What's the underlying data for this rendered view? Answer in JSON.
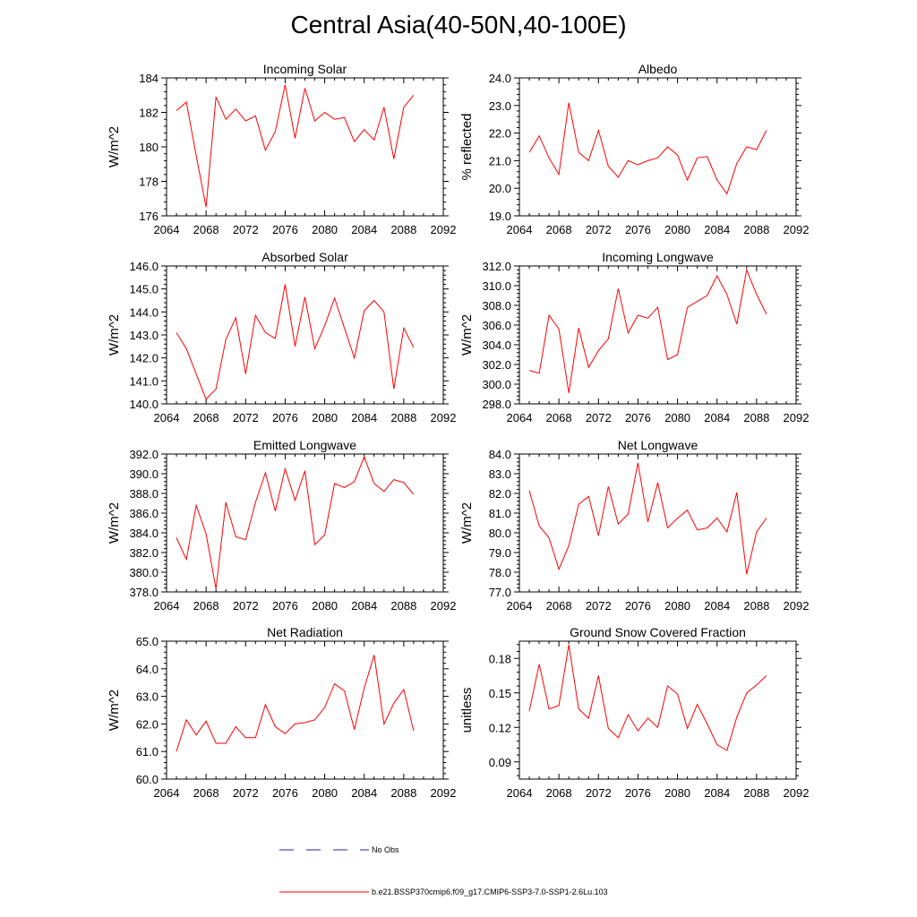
{
  "title": "Central Asia(40-50N,40-100E)",
  "colors": {
    "series": "#ff0000",
    "obs": "#2222aa",
    "axis": "#000000"
  },
  "legend": {
    "obs_label": "No Obs",
    "model_label": "b.e21.BSSP370cmip6.f09_g17.CMIP6-SSP3-7.0-SSP1-2.6Lu.103"
  },
  "chart_data": [
    {
      "type": "line",
      "title": "Incoming Solar",
      "ylabel": "W/m^2",
      "xlim": [
        2064,
        2092
      ],
      "ylim": [
        176,
        184
      ],
      "yticks": [
        176,
        178,
        180,
        182,
        184
      ],
      "ytick_labels": [
        "176",
        "178",
        "180",
        "182",
        "184"
      ],
      "xticks": [
        2064,
        2068,
        2072,
        2076,
        2080,
        2084,
        2088,
        2092
      ],
      "xtick_labels": [
        "2064",
        "2068",
        "2072",
        "2076",
        "2080",
        "2084",
        "2088",
        "2092"
      ],
      "series": [
        {
          "name": "b.e21.BSSP370cmip6.f09_g17.CMIP6-SSP3-7.0-SSP1-2.6Lu.103",
          "x": [
            2065,
            2066,
            2067,
            2068,
            2069,
            2070,
            2071,
            2072,
            2073,
            2074,
            2075,
            2076,
            2077,
            2078,
            2079,
            2080,
            2081,
            2082,
            2083,
            2084,
            2085,
            2086,
            2087,
            2088,
            2089
          ],
          "y": [
            182.1,
            182.6,
            179.5,
            176.5,
            182.9,
            181.6,
            182.2,
            181.5,
            181.8,
            179.8,
            180.9,
            183.6,
            180.5,
            183.4,
            181.5,
            182.0,
            181.6,
            181.7,
            180.3,
            181.0,
            180.4,
            182.3,
            179.3,
            182.3,
            183.0
          ]
        }
      ]
    },
    {
      "type": "line",
      "title": "Albedo",
      "ylabel": "% reflected",
      "xlim": [
        2064,
        2092
      ],
      "ylim": [
        19.0,
        24.0
      ],
      "yticks": [
        19,
        20,
        21,
        22,
        23,
        24
      ],
      "ytick_labels": [
        "19.0",
        "20.0",
        "21.0",
        "22.0",
        "23.0",
        "24.0"
      ],
      "xticks": [
        2064,
        2068,
        2072,
        2076,
        2080,
        2084,
        2088,
        2092
      ],
      "xtick_labels": [
        "2064",
        "2068",
        "2072",
        "2076",
        "2080",
        "2084",
        "2088",
        "2092"
      ],
      "series": [
        {
          "name": "b.e21.BSSP370cmip6.f09_g17.CMIP6-SSP3-7.0-SSP1-2.6Lu.103",
          "x": [
            2065,
            2066,
            2067,
            2068,
            2069,
            2070,
            2071,
            2072,
            2073,
            2074,
            2075,
            2076,
            2077,
            2078,
            2079,
            2080,
            2081,
            2082,
            2083,
            2084,
            2085,
            2086,
            2087,
            2088,
            2089
          ],
          "y": [
            21.3,
            21.9,
            21.1,
            20.5,
            23.1,
            21.3,
            21.0,
            22.1,
            20.8,
            20.4,
            21.0,
            20.85,
            21.0,
            21.1,
            21.5,
            21.2,
            20.3,
            21.1,
            21.15,
            20.3,
            19.8,
            20.9,
            21.5,
            21.4,
            22.1
          ]
        }
      ]
    },
    {
      "type": "line",
      "title": "Absorbed Solar",
      "ylabel": "W/m^2",
      "xlim": [
        2064,
        2092
      ],
      "ylim": [
        140.0,
        146.0
      ],
      "yticks": [
        140,
        141,
        142,
        143,
        144,
        145,
        146
      ],
      "ytick_labels": [
        "140.0",
        "141.0",
        "142.0",
        "143.0",
        "144.0",
        "145.0",
        "146.0"
      ],
      "xticks": [
        2064,
        2068,
        2072,
        2076,
        2080,
        2084,
        2088,
        2092
      ],
      "xtick_labels": [
        "2064",
        "2068",
        "2072",
        "2076",
        "2080",
        "2084",
        "2088",
        "2092"
      ],
      "series": [
        {
          "name": "b.e21.BSSP370cmip6.f09_g17.CMIP6-SSP3-7.0-SSP1-2.6Lu.103",
          "x": [
            2065,
            2066,
            2067,
            2068,
            2069,
            2070,
            2071,
            2072,
            2073,
            2074,
            2075,
            2076,
            2077,
            2078,
            2079,
            2080,
            2081,
            2082,
            2083,
            2084,
            2085,
            2086,
            2087,
            2088,
            2089
          ],
          "y": [
            143.1,
            142.4,
            141.3,
            140.2,
            140.65,
            142.8,
            143.75,
            141.3,
            143.85,
            143.1,
            142.85,
            145.2,
            142.5,
            144.65,
            142.4,
            143.4,
            144.6,
            143.3,
            142.0,
            144.05,
            144.5,
            144.0,
            140.65,
            143.3,
            142.45
          ]
        }
      ]
    },
    {
      "type": "line",
      "title": "Incoming Longwave",
      "ylabel": "W/m^2",
      "xlim": [
        2064,
        2092
      ],
      "ylim": [
        298.0,
        312.0
      ],
      "yticks": [
        298,
        300,
        302,
        304,
        306,
        308,
        310,
        312
      ],
      "ytick_labels": [
        "298.0",
        "300.0",
        "302.0",
        "304.0",
        "306.0",
        "308.0",
        "310.0",
        "312.0"
      ],
      "xticks": [
        2064,
        2068,
        2072,
        2076,
        2080,
        2084,
        2088,
        2092
      ],
      "xtick_labels": [
        "2064",
        "2068",
        "2072",
        "2076",
        "2080",
        "2084",
        "2088",
        "2092"
      ],
      "series": [
        {
          "name": "b.e21.BSSP370cmip6.f09_g17.CMIP6-SSP3-7.0-SSP1-2.6Lu.103",
          "x": [
            2065,
            2066,
            2067,
            2068,
            2069,
            2070,
            2071,
            2072,
            2073,
            2074,
            2075,
            2076,
            2077,
            2078,
            2079,
            2080,
            2081,
            2082,
            2083,
            2084,
            2085,
            2086,
            2087,
            2088,
            2089
          ],
          "y": [
            301.4,
            301.1,
            307.0,
            305.6,
            299.1,
            305.7,
            301.7,
            303.4,
            304.6,
            309.7,
            305.2,
            307.0,
            306.7,
            307.8,
            302.5,
            303.0,
            307.8,
            308.4,
            309.0,
            311.0,
            309.1,
            306.1,
            311.6,
            309.1,
            307.1
          ]
        }
      ]
    },
    {
      "type": "line",
      "title": "Emitted Longwave",
      "ylabel": "W/m^2",
      "xlim": [
        2064,
        2092
      ],
      "ylim": [
        378.0,
        392.0
      ],
      "yticks": [
        378,
        380,
        382,
        384,
        386,
        388,
        390,
        392
      ],
      "ytick_labels": [
        "378.0",
        "380.0",
        "382.0",
        "384.0",
        "386.0",
        "388.0",
        "390.0",
        "392.0"
      ],
      "xticks": [
        2064,
        2068,
        2072,
        2076,
        2080,
        2084,
        2088,
        2092
      ],
      "xtick_labels": [
        "2064",
        "2068",
        "2072",
        "2076",
        "2080",
        "2084",
        "2088",
        "2092"
      ],
      "series": [
        {
          "name": "b.e21.BSSP370cmip6.f09_g17.CMIP6-SSP3-7.0-SSP1-2.6Lu.103",
          "x": [
            2065,
            2066,
            2067,
            2068,
            2069,
            2070,
            2071,
            2072,
            2073,
            2074,
            2075,
            2076,
            2077,
            2078,
            2079,
            2080,
            2081,
            2082,
            2083,
            2084,
            2085,
            2086,
            2087,
            2088,
            2089
          ],
          "y": [
            383.5,
            381.3,
            386.8,
            383.9,
            378.3,
            387.1,
            383.6,
            383.3,
            387.1,
            390.1,
            386.2,
            390.5,
            387.3,
            390.3,
            382.8,
            383.8,
            389.0,
            388.6,
            389.2,
            391.7,
            389.0,
            388.2,
            389.4,
            389.1,
            387.9
          ]
        }
      ]
    },
    {
      "type": "line",
      "title": "Net Longwave",
      "ylabel": "W/m^2",
      "xlim": [
        2064,
        2092
      ],
      "ylim": [
        77.0,
        84.0
      ],
      "yticks": [
        77,
        78,
        79,
        80,
        81,
        82,
        83,
        84
      ],
      "ytick_labels": [
        "77.0",
        "78.0",
        "79.0",
        "80.0",
        "81.0",
        "82.0",
        "83.0",
        "84.0"
      ],
      "xticks": [
        2064,
        2068,
        2072,
        2076,
        2080,
        2084,
        2088,
        2092
      ],
      "xtick_labels": [
        "2064",
        "2068",
        "2072",
        "2076",
        "2080",
        "2084",
        "2088",
        "2092"
      ],
      "series": [
        {
          "name": "b.e21.BSSP370cmip6.f09_g17.CMIP6-SSP3-7.0-SSP1-2.6Lu.103",
          "x": [
            2065,
            2066,
            2067,
            2068,
            2069,
            2070,
            2071,
            2072,
            2073,
            2074,
            2075,
            2076,
            2077,
            2078,
            2079,
            2080,
            2081,
            2082,
            2083,
            2084,
            2085,
            2086,
            2087,
            2088,
            2089
          ],
          "y": [
            82.15,
            80.35,
            79.75,
            78.15,
            79.35,
            81.45,
            81.85,
            79.85,
            82.35,
            80.45,
            80.95,
            83.55,
            80.55,
            82.55,
            80.25,
            80.75,
            81.15,
            80.15,
            80.25,
            80.75,
            80.05,
            82.05,
            77.9,
            80.05,
            80.75
          ]
        }
      ]
    },
    {
      "type": "line",
      "title": "Net Radiation",
      "ylabel": "W/m^2",
      "xlim": [
        2064,
        2092
      ],
      "ylim": [
        60.0,
        65.0
      ],
      "yticks": [
        60,
        61,
        62,
        63,
        64,
        65
      ],
      "ytick_labels": [
        "60.0",
        "61.0",
        "62.0",
        "63.0",
        "64.0",
        "65.0"
      ],
      "xticks": [
        2064,
        2068,
        2072,
        2076,
        2080,
        2084,
        2088,
        2092
      ],
      "xtick_labels": [
        "2064",
        "2068",
        "2072",
        "2076",
        "2080",
        "2084",
        "2088",
        "2092"
      ],
      "series": [
        {
          "name": "b.e21.BSSP370cmip6.f09_g17.CMIP6-SSP3-7.0-SSP1-2.6Lu.103",
          "x": [
            2065,
            2066,
            2067,
            2068,
            2069,
            2070,
            2071,
            2072,
            2073,
            2074,
            2075,
            2076,
            2077,
            2078,
            2079,
            2080,
            2081,
            2082,
            2083,
            2084,
            2085,
            2086,
            2087,
            2088,
            2089
          ],
          "y": [
            61.0,
            62.15,
            61.6,
            62.1,
            61.3,
            61.3,
            61.9,
            61.5,
            61.5,
            62.7,
            61.9,
            61.65,
            62.0,
            62.05,
            62.15,
            62.6,
            63.45,
            63.2,
            61.8,
            63.3,
            64.5,
            62.0,
            62.75,
            63.25,
            61.75
          ]
        }
      ]
    },
    {
      "type": "line",
      "title": "Ground Snow Covered Fraction",
      "ylabel": "unitless",
      "xlim": [
        2064,
        2092
      ],
      "ylim": [
        0.075,
        0.195
      ],
      "yticks": [
        0.09,
        0.12,
        0.15,
        0.18
      ],
      "ytick_labels": [
        "0.09",
        "0.12",
        "0.15",
        "0.18"
      ],
      "xticks": [
        2064,
        2068,
        2072,
        2076,
        2080,
        2084,
        2088,
        2092
      ],
      "xtick_labels": [
        "2064",
        "2068",
        "2072",
        "2076",
        "2080",
        "2084",
        "2088",
        "2092"
      ],
      "series": [
        {
          "name": "b.e21.BSSP370cmip6.f09_g17.CMIP6-SSP3-7.0-SSP1-2.6Lu.103",
          "x": [
            2065,
            2066,
            2067,
            2068,
            2069,
            2070,
            2071,
            2072,
            2073,
            2074,
            2075,
            2076,
            2077,
            2078,
            2079,
            2080,
            2081,
            2082,
            2083,
            2084,
            2085,
            2086,
            2087,
            2088,
            2089
          ],
          "y": [
            0.134,
            0.175,
            0.136,
            0.139,
            0.192,
            0.136,
            0.128,
            0.165,
            0.119,
            0.111,
            0.131,
            0.117,
            0.128,
            0.12,
            0.156,
            0.149,
            0.119,
            0.14,
            0.123,
            0.105,
            0.1,
            0.129,
            0.15,
            0.157,
            0.165
          ]
        }
      ]
    }
  ]
}
